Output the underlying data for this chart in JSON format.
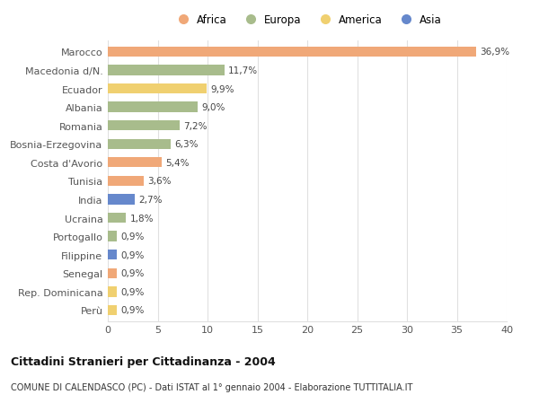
{
  "countries": [
    "Marocco",
    "Macedonia d/N.",
    "Ecuador",
    "Albania",
    "Romania",
    "Bosnia-Erzegovina",
    "Costa d'Avorio",
    "Tunisia",
    "India",
    "Ucraina",
    "Portogallo",
    "Filippine",
    "Senegal",
    "Rep. Dominicana",
    "Perù"
  ],
  "values": [
    36.9,
    11.7,
    9.9,
    9.0,
    7.2,
    6.3,
    5.4,
    3.6,
    2.7,
    1.8,
    0.9,
    0.9,
    0.9,
    0.9,
    0.9
  ],
  "labels": [
    "36,9%",
    "11,7%",
    "9,9%",
    "9,0%",
    "7,2%",
    "6,3%",
    "5,4%",
    "3,6%",
    "2,7%",
    "1,8%",
    "0,9%",
    "0,9%",
    "0,9%",
    "0,9%",
    "0,9%"
  ],
  "continents": [
    "Africa",
    "Europa",
    "America",
    "Europa",
    "Europa",
    "Europa",
    "Africa",
    "Africa",
    "Asia",
    "Europa",
    "Europa",
    "Asia",
    "Africa",
    "America",
    "America"
  ],
  "continent_colors": {
    "Africa": "#F0A878",
    "Europa": "#A8BC8C",
    "America": "#F0D070",
    "Asia": "#6688CC"
  },
  "legend_items": [
    "Africa",
    "Europa",
    "America",
    "Asia"
  ],
  "title_bold": "Cittadini Stranieri per Cittadinanza - 2004",
  "subtitle": "COMUNE DI CALENDASCO (PC) - Dati ISTAT al 1° gennaio 2004 - Elaborazione TUTTITALIA.IT",
  "xlim": [
    0,
    40
  ],
  "xticks": [
    0,
    5,
    10,
    15,
    20,
    25,
    30,
    35,
    40
  ],
  "background_color": "#ffffff",
  "grid_color": "#e0e0e0"
}
